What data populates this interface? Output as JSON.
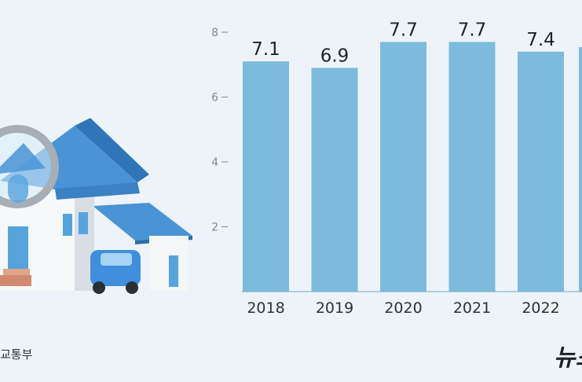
{
  "chart_data": {
    "type": "bar",
    "categories": [
      "2018",
      "2019",
      "2020",
      "2021",
      "2022"
    ],
    "values": [
      7.1,
      6.9,
      7.7,
      7.7,
      7.4
    ],
    "data_labels": [
      "7.1",
      "6.9",
      "7.7",
      "7.7",
      "7.4"
    ],
    "y_ticks": [
      2,
      4,
      6,
      8
    ],
    "ylim": [
      0,
      8
    ],
    "bar_color": "#7cbbdc",
    "grid": false
  },
  "source_text": "교통부",
  "logo_text": "뉴스"
}
